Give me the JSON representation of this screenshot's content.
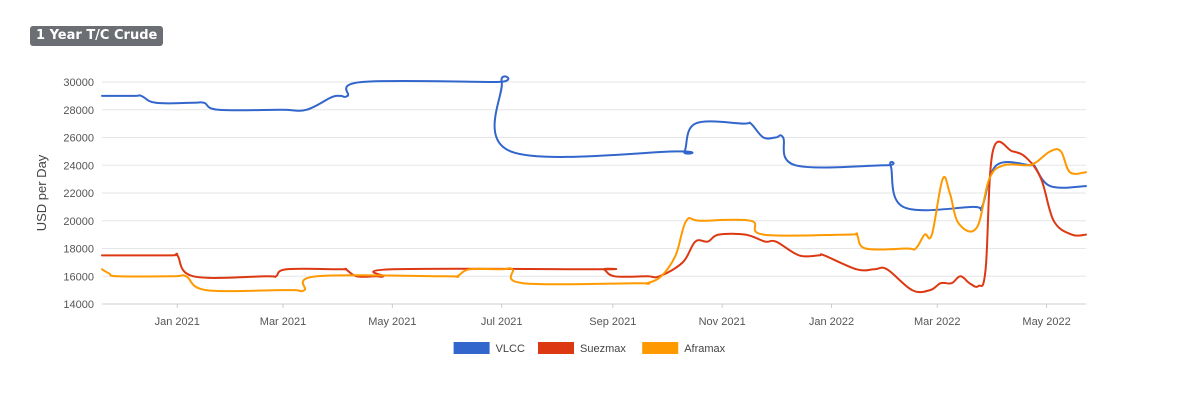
{
  "chart_data": {
    "type": "line",
    "title": "1 Year T/C Crude",
    "ylabel": "USD per Day",
    "xlabel": "",
    "ylim": [
      14000,
      30000
    ],
    "yticks": [
      14000,
      16000,
      18000,
      20000,
      22000,
      24000,
      26000,
      28000,
      30000
    ],
    "xlim": [
      "2020-11-20",
      "2022-05-23"
    ],
    "xticks": [
      {
        "label": "Jan 2021",
        "date": "2021-01-01"
      },
      {
        "label": "Mar 2021",
        "date": "2021-03-01"
      },
      {
        "label": "May 2021",
        "date": "2021-05-01"
      },
      {
        "label": "Jul 2021",
        "date": "2021-07-01"
      },
      {
        "label": "Sep 2021",
        "date": "2021-09-01"
      },
      {
        "label": "Nov 2021",
        "date": "2021-11-01"
      },
      {
        "label": "Jan 2022",
        "date": "2022-01-01"
      },
      {
        "label": "Mar 2022",
        "date": "2022-03-01"
      },
      {
        "label": "May 2022",
        "date": "2022-05-01"
      }
    ],
    "grid": true,
    "legend_position": "bottom",
    "series": [
      {
        "name": "VLCC",
        "color": "#3366cc",
        "points": [
          [
            "2020-11-20",
            29000
          ],
          [
            "2020-12-08",
            29000
          ],
          [
            "2020-12-12",
            29000
          ],
          [
            "2020-12-20",
            28500
          ],
          [
            "2021-01-10",
            28500
          ],
          [
            "2021-01-16",
            28500
          ],
          [
            "2021-01-24",
            28000
          ],
          [
            "2021-02-28",
            28000
          ],
          [
            "2021-03-14",
            28000
          ],
          [
            "2021-03-28",
            28900
          ],
          [
            "2021-04-02",
            29000
          ],
          [
            "2021-04-06",
            29000
          ],
          [
            "2021-04-14",
            30000
          ],
          [
            "2021-06-28",
            30000
          ],
          [
            "2021-07-01",
            30000
          ],
          [
            "2021-07-06",
            25000
          ],
          [
            "2021-10-07",
            25000
          ],
          [
            "2021-10-11",
            25000
          ],
          [
            "2021-10-17",
            27000
          ],
          [
            "2021-11-13",
            27000
          ],
          [
            "2021-11-17",
            27000
          ],
          [
            "2021-11-24",
            26000
          ],
          [
            "2021-12-01",
            26000
          ],
          [
            "2021-12-05",
            26000
          ],
          [
            "2021-12-12",
            24000
          ],
          [
            "2022-01-31",
            24000
          ],
          [
            "2022-02-03",
            24000
          ],
          [
            "2022-02-10",
            21000
          ],
          [
            "2022-03-21",
            21000
          ],
          [
            "2022-03-26",
            21000
          ],
          [
            "2022-04-03",
            24000
          ],
          [
            "2022-04-22",
            24000
          ],
          [
            "2022-04-24",
            24000
          ],
          [
            "2022-05-03",
            22500
          ],
          [
            "2022-05-23",
            22500
          ]
        ]
      },
      {
        "name": "Suezmax",
        "color": "#dc3912",
        "points": [
          [
            "2020-11-20",
            17500
          ],
          [
            "2020-12-28",
            17500
          ],
          [
            "2021-01-01",
            17500
          ],
          [
            "2021-01-10",
            16000
          ],
          [
            "2021-02-20",
            16000
          ],
          [
            "2021-02-25",
            16000
          ],
          [
            "2021-03-03",
            16500
          ],
          [
            "2021-04-02",
            16500
          ],
          [
            "2021-04-05",
            16500
          ],
          [
            "2021-04-11",
            16000
          ],
          [
            "2021-04-22",
            16000
          ],
          [
            "2021-04-26",
            16000
          ],
          [
            "2021-05-01",
            16500
          ],
          [
            "2021-08-24",
            16500
          ],
          [
            "2021-08-27",
            16500
          ],
          [
            "2021-09-02",
            16000
          ],
          [
            "2021-09-20",
            16000
          ],
          [
            "2021-09-27",
            16000
          ],
          [
            "2021-10-10",
            17000
          ],
          [
            "2021-10-17",
            18500
          ],
          [
            "2021-10-24",
            18500
          ],
          [
            "2021-10-30",
            19000
          ],
          [
            "2021-11-14",
            19000
          ],
          [
            "2021-11-25",
            18500
          ],
          [
            "2021-12-01",
            18500
          ],
          [
            "2021-12-14",
            17500
          ],
          [
            "2021-12-25",
            17500
          ],
          [
            "2021-12-28",
            17500
          ],
          [
            "2022-01-15",
            16500
          ],
          [
            "2022-01-25",
            16500
          ],
          [
            "2022-02-01",
            16500
          ],
          [
            "2022-02-15",
            15000
          ],
          [
            "2022-02-25",
            15000
          ],
          [
            "2022-03-03",
            15500
          ],
          [
            "2022-03-09",
            15500
          ],
          [
            "2022-03-14",
            16000
          ],
          [
            "2022-03-19",
            15500
          ],
          [
            "2022-03-24",
            15300
          ],
          [
            "2022-03-28",
            16500
          ],
          [
            "2022-04-01",
            25000
          ],
          [
            "2022-04-12",
            25000
          ],
          [
            "2022-04-20",
            24500
          ],
          [
            "2022-04-28",
            23000
          ],
          [
            "2022-05-05",
            20000
          ],
          [
            "2022-05-15",
            19000
          ],
          [
            "2022-05-23",
            19000
          ]
        ]
      },
      {
        "name": "Aframax",
        "color": "#ff9900",
        "points": [
          [
            "2020-11-20",
            16500
          ],
          [
            "2020-11-24",
            16200
          ],
          [
            "2020-11-29",
            16000
          ],
          [
            "2020-12-30",
            16000
          ],
          [
            "2021-01-06",
            16000
          ],
          [
            "2021-01-17",
            15000
          ],
          [
            "2021-02-28",
            15000
          ],
          [
            "2021-03-08",
            15000
          ],
          [
            "2021-03-13",
            15000
          ],
          [
            "2021-03-20",
            16000
          ],
          [
            "2021-05-30",
            16000
          ],
          [
            "2021-06-06",
            16000
          ],
          [
            "2021-06-13",
            16500
          ],
          [
            "2021-07-01",
            16500
          ],
          [
            "2021-07-07",
            16500
          ],
          [
            "2021-07-13",
            15500
          ],
          [
            "2021-09-15",
            15500
          ],
          [
            "2021-09-20",
            15500
          ],
          [
            "2021-09-28",
            16000
          ],
          [
            "2021-10-06",
            17500
          ],
          [
            "2021-10-12",
            20000
          ],
          [
            "2021-10-20",
            20000
          ],
          [
            "2021-11-17",
            20000
          ],
          [
            "2021-11-24",
            19000
          ],
          [
            "2022-01-10",
            19000
          ],
          [
            "2022-01-15",
            19000
          ],
          [
            "2022-01-20",
            18000
          ],
          [
            "2022-02-12",
            18000
          ],
          [
            "2022-02-17",
            18000
          ],
          [
            "2022-02-22",
            19000
          ],
          [
            "2022-02-26",
            19000
          ],
          [
            "2022-03-04",
            23000
          ],
          [
            "2022-03-08",
            22000
          ],
          [
            "2022-03-13",
            19800
          ],
          [
            "2022-03-23",
            19500
          ],
          [
            "2022-03-30",
            23000
          ],
          [
            "2022-04-07",
            24000
          ],
          [
            "2022-04-20",
            24000
          ],
          [
            "2022-04-25",
            24200
          ],
          [
            "2022-05-03",
            25000
          ],
          [
            "2022-05-09",
            25000
          ],
          [
            "2022-05-14",
            23500
          ],
          [
            "2022-05-23",
            23500
          ]
        ]
      }
    ]
  }
}
